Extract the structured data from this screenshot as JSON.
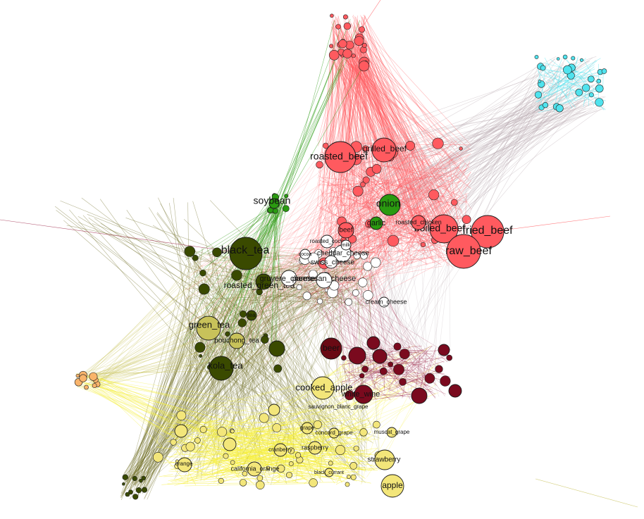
{
  "colors": {
    "meat": "#ff5a5f",
    "fish": "#4fe3ee",
    "tea": "#3a4a00",
    "tea_light": "#c8c25a",
    "vegetable": "#2a9a10",
    "dairy": "#ffffff",
    "fruit": "#f3e67a",
    "fruit_edge": "#f6f040",
    "wine": "#7a0a1e",
    "wine_edge": "#a03050",
    "orange_cluster": "#f9b46b",
    "grey_edge": "#b8a8b0",
    "tea_edge": "#6c6a20"
  },
  "labels": {
    "roasted_beef": "roasted_beef",
    "grilled_beef": "grilled_beef",
    "fried_beef": "fried_beef",
    "boiled_beef": "boiled_beef",
    "raw_beef": "raw_beef",
    "roasted_chicken": "roasted_chicken",
    "beef": "beef",
    "onion": "onion",
    "garlic": "garlic",
    "soybean": "soybean",
    "black_tea": "black_tea",
    "green_tea": "green_tea",
    "kola_tea": "kola_tea",
    "roasted_green_tea": "roasted_green_tea",
    "pouchong_tea": "pouchong_tea",
    "roasted_cocoa": "roasted_cocoa",
    "cheddar_cheese": "cheddar_cheese",
    "swiss_cheese": "swiss_cheese",
    "gruyere_cheese": "gruyere_cheese",
    "parmesan_cheese": "parmesan_cheese",
    "cream_cheese": "cream_cheese",
    "beer": "beer",
    "white_wine": "white_wine",
    "cooked_apple": "cooked_apple",
    "sauvignon_blanc_grape": "sauvignon_blanc_grape",
    "concord_grape": "concord_grape",
    "muscat_grape": "muscat_grape",
    "raspberry": "raspberry",
    "strawberry": "strawberry",
    "apple": "apple",
    "orange": "orange",
    "california_orange": "california_orange",
    "cranberry": "cranberry",
    "black_currant": "black_currant",
    "grape": "grape",
    "tea": "tea",
    "milk": "milk",
    "cocoa": "cocoa"
  }
}
